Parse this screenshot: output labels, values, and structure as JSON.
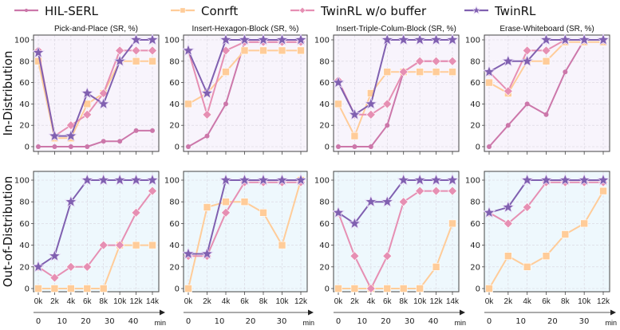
{
  "legend": [
    {
      "name": "HIL-SERL",
      "color": "#cc77aa",
      "marker": "circle"
    },
    {
      "name": "Conrft",
      "color": "#ffcc99",
      "marker": "square"
    },
    {
      "name": "TwinRL w/o buffer",
      "color": "#e68fb3",
      "marker": "diamond"
    },
    {
      "name": "TwinRL",
      "color": "#8060b0",
      "marker": "star"
    }
  ],
  "rows": [
    {
      "label": "In-Distribution",
      "background": "#f8f4fc"
    },
    {
      "label": "Out-of-Distribution",
      "background": "#eef8fd"
    }
  ],
  "chart_data": [
    {
      "type": "line",
      "row": 0,
      "col": 0,
      "title": "Pick-and-Place (SR, %)",
      "categories": [
        "0k",
        "2k",
        "4k",
        "6k",
        "8k",
        "10k",
        "12k",
        "14k"
      ],
      "show_xticklabels": false,
      "ylim": [
        0,
        100
      ],
      "yticks": [
        0,
        20,
        40,
        60,
        80,
        100
      ],
      "series": [
        {
          "name": "HIL-SERL",
          "values": [
            0,
            0,
            0,
            0,
            5,
            5,
            15,
            15
          ]
        },
        {
          "name": "Conrft",
          "values": [
            80,
            8,
            8,
            40,
            50,
            80,
            80,
            80
          ]
        },
        {
          "name": "TwinRL w/o buffer",
          "values": [
            90,
            10,
            20,
            30,
            50,
            90,
            90,
            90
          ]
        },
        {
          "name": "TwinRL",
          "values": [
            88,
            10,
            10,
            50,
            40,
            80,
            100,
            100
          ]
        }
      ]
    },
    {
      "type": "line",
      "row": 0,
      "col": 1,
      "title": "Insert-Hexagon-Block (SR, %)",
      "categories": [
        "0k",
        "2k",
        "4k",
        "6k",
        "8k",
        "10k",
        "12k"
      ],
      "show_xticklabels": false,
      "ylim": [
        0,
        100
      ],
      "yticks": [
        0,
        20,
        40,
        60,
        80,
        100
      ],
      "series": [
        {
          "name": "HIL-SERL",
          "values": [
            0,
            10,
            40,
            98,
            98,
            98,
            98
          ]
        },
        {
          "name": "Conrft",
          "values": [
            40,
            50,
            70,
            90,
            90,
            90,
            90
          ]
        },
        {
          "name": "TwinRL w/o buffer",
          "values": [
            90,
            30,
            90,
            98,
            98,
            98,
            98
          ]
        },
        {
          "name": "TwinRL",
          "values": [
            90,
            50,
            100,
            100,
            100,
            100,
            100
          ]
        }
      ]
    },
    {
      "type": "line",
      "row": 0,
      "col": 2,
      "title": "Insert-Triple-Colum-Block (SR, %)",
      "categories": [
        "0k",
        "2k",
        "4k",
        "6k",
        "8k",
        "10k",
        "12k",
        "14k"
      ],
      "show_xticklabels": false,
      "ylim": [
        0,
        100
      ],
      "yticks": [
        0,
        20,
        40,
        60,
        80,
        100
      ],
      "series": [
        {
          "name": "HIL-SERL",
          "values": [
            0,
            0,
            0,
            20,
            70,
            80,
            80,
            80
          ]
        },
        {
          "name": "Conrft",
          "values": [
            40,
            10,
            50,
            70,
            70,
            70,
            70,
            70
          ]
        },
        {
          "name": "TwinRL w/o buffer",
          "values": [
            62,
            30,
            30,
            40,
            70,
            80,
            80,
            80
          ]
        },
        {
          "name": "TwinRL",
          "values": [
            60,
            30,
            40,
            100,
            100,
            100,
            100,
            100
          ]
        }
      ]
    },
    {
      "type": "line",
      "row": 0,
      "col": 3,
      "title": "Erase-Whiteboard (SR, %)",
      "categories": [
        "0k",
        "2k",
        "4k",
        "6k",
        "8k",
        "10k",
        "12k"
      ],
      "show_xticklabels": false,
      "ylim": [
        0,
        100
      ],
      "yticks": [
        0,
        20,
        40,
        60,
        80,
        100
      ],
      "series": [
        {
          "name": "HIL-SERL",
          "values": [
            0,
            20,
            40,
            30,
            70,
            100,
            100
          ]
        },
        {
          "name": "Conrft",
          "values": [
            60,
            50,
            80,
            80,
            98,
            98,
            98
          ]
        },
        {
          "name": "TwinRL w/o buffer",
          "values": [
            70,
            52,
            90,
            90,
            100,
            100,
            100
          ]
        },
        {
          "name": "TwinRL",
          "values": [
            70,
            80,
            80,
            100,
            100,
            100,
            100
          ]
        }
      ]
    },
    {
      "type": "line",
      "row": 1,
      "col": 0,
      "title": "",
      "categories": [
        "0k",
        "2k",
        "4k",
        "6k",
        "8k",
        "10k",
        "12k",
        "14k"
      ],
      "show_xticklabels": true,
      "min_axis": {
        "ticks": [
          "0",
          "10",
          "20",
          "30",
          "40"
        ],
        "unit": "min"
      },
      "ylim": [
        0,
        100
      ],
      "yticks": [
        0,
        20,
        40,
        60,
        80,
        100
      ],
      "series": [
        {
          "name": "Conrft",
          "values": [
            0,
            0,
            0,
            0,
            0,
            40,
            40,
            40
          ]
        },
        {
          "name": "TwinRL w/o buffer",
          "values": [
            20,
            10,
            20,
            20,
            40,
            40,
            70,
            90
          ]
        },
        {
          "name": "TwinRL",
          "values": [
            20,
            30,
            80,
            100,
            100,
            100,
            100,
            100
          ]
        }
      ]
    },
    {
      "type": "line",
      "row": 1,
      "col": 1,
      "title": "",
      "categories": [
        "0k",
        "2k",
        "4k",
        "6k",
        "8k",
        "10k",
        "12k"
      ],
      "show_xticklabels": true,
      "min_axis": {
        "ticks": [
          "0",
          "10",
          "20",
          "30"
        ],
        "unit": "min"
      },
      "ylim": [
        0,
        100
      ],
      "yticks": [
        0,
        20,
        40,
        60,
        80,
        100
      ],
      "series": [
        {
          "name": "Conrft",
          "values": [
            0,
            75,
            80,
            80,
            70,
            40,
            100
          ]
        },
        {
          "name": "TwinRL w/o buffer",
          "values": [
            30,
            30,
            70,
            98,
            98,
            98,
            98
          ]
        },
        {
          "name": "TwinRL",
          "values": [
            32,
            32,
            100,
            100,
            100,
            100,
            100
          ]
        }
      ]
    },
    {
      "type": "line",
      "row": 1,
      "col": 2,
      "title": "",
      "categories": [
        "0k",
        "2k",
        "4k",
        "6k",
        "8k",
        "10k",
        "12k",
        "14k"
      ],
      "show_xticklabels": true,
      "min_axis": {
        "ticks": [
          "0",
          "10",
          "20",
          "30",
          "40"
        ],
        "unit": "min"
      },
      "ylim": [
        0,
        100
      ],
      "yticks": [
        0,
        20,
        40,
        60,
        80,
        100
      ],
      "series": [
        {
          "name": "Conrft",
          "values": [
            0,
            0,
            0,
            0,
            0,
            0,
            20,
            60
          ]
        },
        {
          "name": "TwinRL w/o buffer",
          "values": [
            70,
            30,
            0,
            30,
            80,
            90,
            90,
            90
          ]
        },
        {
          "name": "TwinRL",
          "values": [
            70,
            60,
            80,
            80,
            100,
            100,
            100,
            100
          ]
        }
      ]
    },
    {
      "type": "line",
      "row": 1,
      "col": 3,
      "title": "",
      "categories": [
        "0k",
        "2k",
        "4k",
        "6k",
        "8k",
        "10k",
        "12k"
      ],
      "show_xticklabels": true,
      "min_axis": {
        "ticks": [
          "0",
          "10",
          "20",
          "30"
        ],
        "unit": "min"
      },
      "ylim": [
        0,
        100
      ],
      "yticks": [
        0,
        20,
        40,
        60,
        80,
        100
      ],
      "series": [
        {
          "name": "Conrft",
          "values": [
            0,
            30,
            20,
            30,
            50,
            60,
            90
          ]
        },
        {
          "name": "TwinRL w/o buffer",
          "values": [
            70,
            60,
            75,
            98,
            98,
            98,
            98
          ]
        },
        {
          "name": "TwinRL",
          "values": [
            70,
            75,
            100,
            100,
            100,
            100,
            100
          ]
        }
      ]
    }
  ]
}
